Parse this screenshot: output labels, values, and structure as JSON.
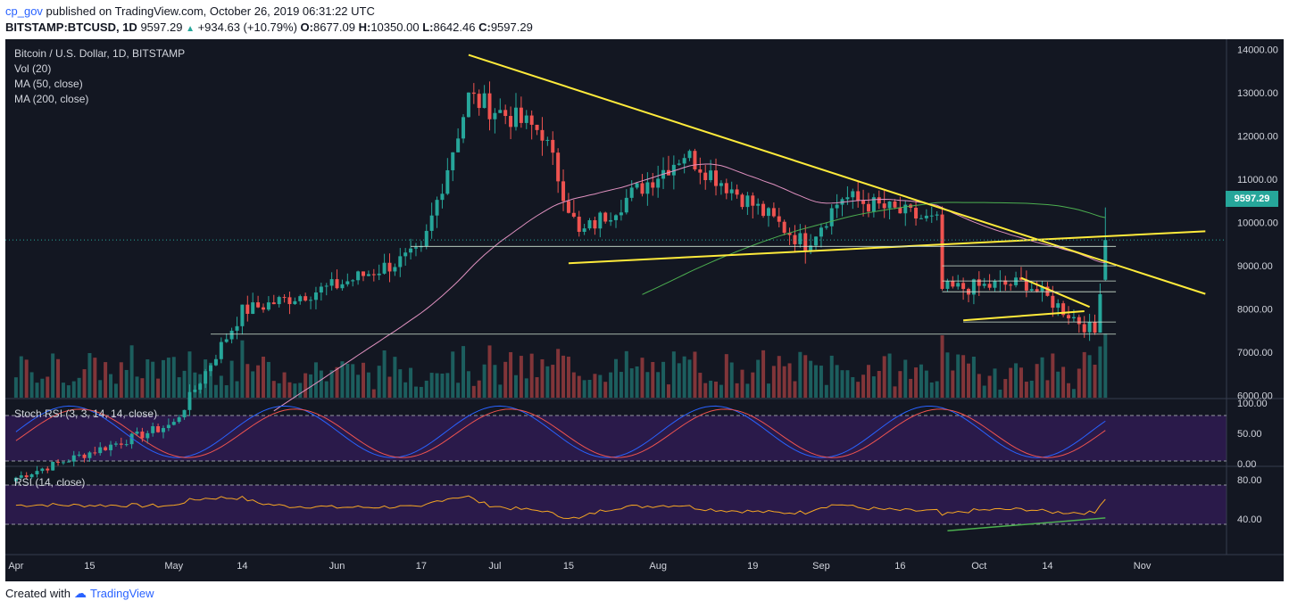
{
  "header": {
    "user": "cp_gov",
    "published": "published on TradingView.com, October 26, 2019 06:31:22 UTC",
    "symbol": "BITSTAMP:BTCUSD, 1D",
    "last": "9597.29",
    "change": "+934.63 (+10.79%)",
    "open_label": "O:",
    "open": "8677.09",
    "high_label": "H:",
    "high": "10350.00",
    "low_label": "L:",
    "low": "8642.46",
    "close_label": "C:",
    "close": "9597.29"
  },
  "legend": {
    "title": "Bitcoin / U.S. Dollar, 1D, BITSTAMP",
    "vol": "Vol (20)",
    "ma50": "MA (50, close)",
    "ma200": "MA (200, close)",
    "stoch": "Stoch RSI (3, 3, 14, 14, close)",
    "rsi": "RSI (14, close)"
  },
  "price_tag": "9597.29",
  "footer": {
    "created": "Created with",
    "brand": "TradingView"
  },
  "colors": {
    "background": "#131722",
    "up": "#26a69a",
    "down": "#ef5350",
    "trendline": "#ffeb3b",
    "ma50": "#e091c0",
    "ma200": "#4caf50"
  },
  "chart_data": {
    "type": "candlestick",
    "price_axis": {
      "ticks": [
        14000,
        13000,
        12000,
        11000,
        10000,
        9000,
        8000,
        7000,
        6000
      ],
      "labels": [
        "14000.00",
        "13000.00",
        "12000.00",
        "11000.00",
        "10000.00",
        "9000.00",
        "8000.00",
        "7000.00",
        "6000.00"
      ],
      "range": [
        5950,
        14200
      ]
    },
    "stoch_axis": {
      "labels": [
        "100.00",
        "50.00",
        "0.00"
      ],
      "values": [
        100,
        50,
        0
      ]
    },
    "rsi_axis": {
      "labels": [
        "80.00",
        "40.00"
      ],
      "values": [
        80,
        40
      ]
    },
    "x_axis": {
      "labels": [
        "Apr",
        "15",
        "May",
        "14",
        "Jun",
        "17",
        "Jul",
        "15",
        "Aug",
        "19",
        "Sep",
        "16",
        "Oct",
        "14",
        "Nov"
      ]
    },
    "key_points": [
      {
        "date": "2019-04-01",
        "close": 4100
      },
      {
        "date": "2019-05-01",
        "close": 5350
      },
      {
        "date": "2019-05-14",
        "close": 7950
      },
      {
        "date": "2019-06-01",
        "close": 8550
      },
      {
        "date": "2019-06-17",
        "close": 9300
      },
      {
        "date": "2019-06-26",
        "close": 12900
      },
      {
        "date": "2019-07-10",
        "close": 12100
      },
      {
        "date": "2019-07-17",
        "close": 9700
      },
      {
        "date": "2019-08-06",
        "close": 11600
      },
      {
        "date": "2019-08-29",
        "close": 9500
      },
      {
        "date": "2019-09-05",
        "close": 10600
      },
      {
        "date": "2019-09-23",
        "close": 10000
      },
      {
        "date": "2019-09-24",
        "close": 8450
      },
      {
        "date": "2019-10-10",
        "close": 8600
      },
      {
        "date": "2019-10-23",
        "close": 7450
      },
      {
        "date": "2019-10-25",
        "close": 9597.29
      }
    ],
    "last_candle": {
      "open": 8677.09,
      "high": 10350.0,
      "low": 8642.46,
      "close": 9597.29
    }
  }
}
